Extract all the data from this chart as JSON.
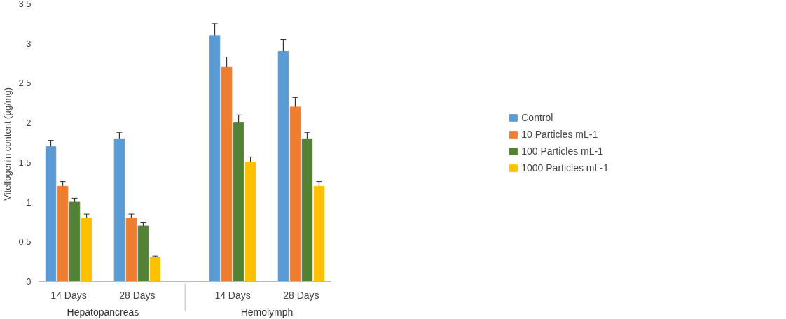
{
  "chart_data": {
    "type": "bar",
    "ylabel": "Vitellogenin content  (µg/mg)",
    "categories": [
      "14 Days",
      "28 Days",
      "14 Days",
      "28 Days"
    ],
    "annotations": [
      "Hepatopancreas",
      "Hemolymph"
    ],
    "series": [
      {
        "name": "Control",
        "color": "#5b9bd5",
        "values": [
          1.7,
          1.8,
          3.1,
          2.9
        ],
        "errors": [
          0.08,
          0.08,
          0.15,
          0.15
        ]
      },
      {
        "name": "10 Particles mL-1",
        "color": "#ed7d31",
        "values": [
          1.2,
          0.8,
          2.7,
          2.2
        ],
        "errors": [
          0.06,
          0.05,
          0.13,
          0.12
        ]
      },
      {
        "name": "100 Particles mL-1",
        "color": "#548235",
        "values": [
          1.0,
          0.7,
          2.0,
          1.8
        ],
        "errors": [
          0.05,
          0.04,
          0.1,
          0.08
        ]
      },
      {
        "name": "1000 Particles mL-1",
        "color": "#ffc000",
        "values": [
          0.8,
          0.3,
          1.5,
          1.2
        ],
        "errors": [
          0.05,
          0.02,
          0.07,
          0.06
        ]
      }
    ],
    "ylim": [
      0,
      3.5
    ],
    "yticks": [
      0,
      0.5,
      1,
      1.5,
      2,
      2.5,
      3,
      3.5
    ],
    "grid": false,
    "legend": "right"
  }
}
